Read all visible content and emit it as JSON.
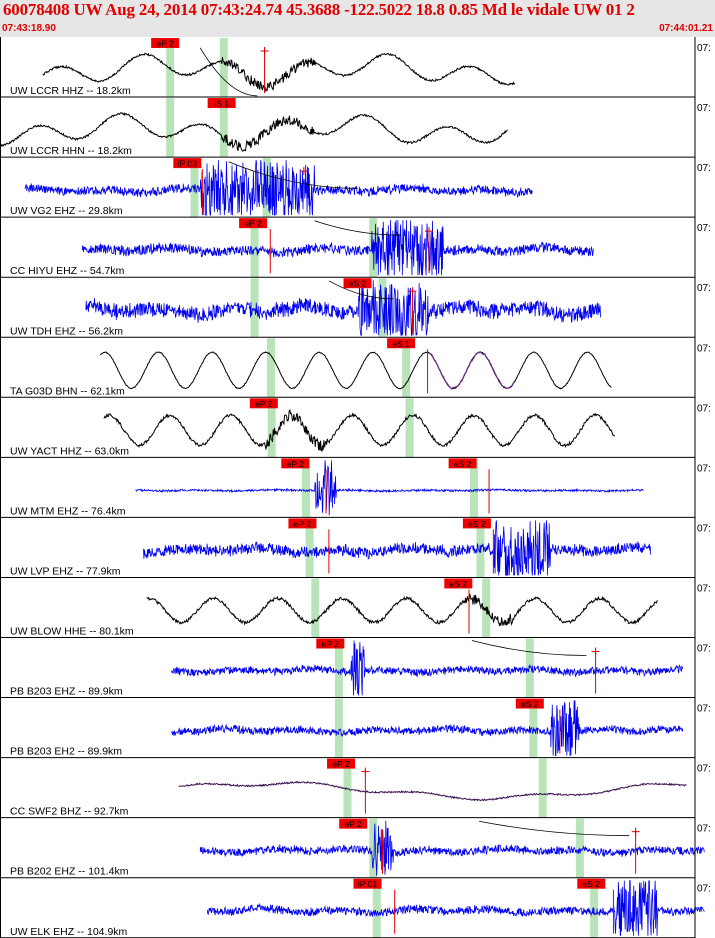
{
  "header": {
    "title": "60078408 UW Aug 24, 2014 07:43:24.74    45.3688 -122.5022 18.8 0.85 Md le vidale UW 01   2",
    "start_time": "07:43:18.90",
    "end_time": "07:44:01.21"
  },
  "edge_label": "07:",
  "traces": [
    {
      "label": "UW LCCR HHZ -- 18.2km",
      "color": "#000000",
      "style": "lowfreq",
      "t0": 0.06,
      "t1": 0.72,
      "amp": 0.55,
      "picks": [
        {
          "text": "eP 2",
          "x": 0.231
        }
      ],
      "shades": [
        0.238,
        0.313
      ],
      "redlines": [
        0.37
      ],
      "crosses": [
        0.37
      ],
      "burst": [
        0.31,
        0.44
      ],
      "curve": [
        0.28,
        0.18,
        0.36,
        0.98
      ]
    },
    {
      "label": "UW LCCR HHN -- 18.2km",
      "color": "#000000",
      "style": "lowfreq",
      "t0": 0.0,
      "t1": 0.71,
      "amp": 0.55,
      "picks": [
        {
          "text": "iS 1",
          "x": 0.31
        }
      ],
      "shades": [
        0.238,
        0.313
      ],
      "redlines": [],
      "crosses": [],
      "burst": [
        0.31,
        0.44
      ]
    },
    {
      "label": "UW VG2 EHZ -- 29.8km",
      "color": "#0000ee",
      "style": "hf",
      "t0": 0.035,
      "t1": 0.745,
      "amp": 0.18,
      "picks": [
        {
          "text": "iP 03",
          "x": 0.262
        }
      ],
      "shades": [
        0.272,
        0.373
      ],
      "redlines": [
        0.283
      ],
      "crosses": [
        0.425
      ],
      "burst": [
        0.28,
        0.44
      ],
      "curve": [
        0.32,
        0.08,
        0.5,
        0.52
      ]
    },
    {
      "label": "CC HIYU EHZ -- 54.7km",
      "color": "#0000ee",
      "style": "hf",
      "t0": 0.115,
      "t1": 0.83,
      "amp": 0.2,
      "picks": [
        {
          "text": "eP 2",
          "x": 0.354
        }
      ],
      "shades": [
        0.356,
        0.522
      ],
      "redlines": [
        0.378,
        0.6
      ],
      "crosses": [
        0.6
      ],
      "burst": [
        0.52,
        0.62
      ],
      "curve": [
        0.44,
        0.06,
        0.56,
        0.3
      ]
    },
    {
      "label": "UW TDH EHZ -- 56.2km",
      "color": "#0000ee",
      "style": "hf",
      "t0": 0.12,
      "t1": 0.84,
      "amp": 0.3,
      "picks": [
        {
          "text": "eS 2",
          "x": 0.5
        }
      ],
      "shades": [
        0.356,
        0.535
      ],
      "redlines": [
        0.577
      ],
      "crosses": [
        0.577
      ],
      "burst": [
        0.5,
        0.6
      ],
      "curve": [
        0.46,
        0.06,
        0.55,
        0.36
      ]
    },
    {
      "label": "TA G03D BHN -- 62.1km",
      "color": "#000000",
      "style": "sine",
      "t0": 0.14,
      "t1": 0.855,
      "amp": 0.6,
      "period": 0.075,
      "picks": [
        {
          "text": "eS 1",
          "x": 0.561
        }
      ],
      "shades": [
        0.379,
        0.568
      ],
      "redlines": [
        0.598
      ],
      "crosses": [],
      "burst": [],
      "purple": [
        0.6,
        0.72
      ]
    },
    {
      "label": "UW YACT HHZ -- 63.0km",
      "color": "#000000",
      "style": "sinenoisy",
      "t0": 0.145,
      "t1": 0.86,
      "amp": 0.5,
      "period": 0.085,
      "picks": [
        {
          "text": "eP 2",
          "x": 0.369
        }
      ],
      "shades": [
        0.38,
        0.573
      ],
      "redlines": [],
      "crosses": [],
      "burst": [
        0.37,
        0.46
      ]
    },
    {
      "label": "UW MTM EHZ -- 76.4km",
      "color": "#0000ee",
      "style": "hf",
      "t0": 0.19,
      "t1": 0.9,
      "amp": 0.04,
      "picks": [
        {
          "text": "eP 2",
          "x": 0.413
        },
        {
          "text": "eS 2",
          "x": 0.647
        }
      ],
      "shades": [
        0.428,
        0.663
      ],
      "redlines": [
        0.456,
        0.684
      ],
      "crosses": [],
      "burst": [
        0.44,
        0.47
      ]
    },
    {
      "label": "UW LVP EHZ -- 77.9km",
      "color": "#0000ee",
      "style": "hf",
      "t0": 0.2,
      "t1": 0.91,
      "amp": 0.22,
      "picks": [
        {
          "text": "eP 2",
          "x": 0.423
        },
        {
          "text": "eS 2",
          "x": 0.667
        }
      ],
      "shades": [
        0.433,
        0.672
      ],
      "redlines": [
        0.46,
        0.69
      ],
      "crosses": [],
      "burst": [
        0.69,
        0.77
      ]
    },
    {
      "label": "UW BLOW HHE -- 80.1km",
      "color": "#000000",
      "style": "sinenoisy",
      "t0": 0.205,
      "t1": 0.92,
      "amp": 0.4,
      "period": 0.09,
      "picks": [
        {
          "text": "eS 2",
          "x": 0.641
        }
      ],
      "shades": [
        0.441,
        0.68
      ],
      "redlines": [
        0.656
      ],
      "crosses": [],
      "burst": [
        0.65,
        0.72
      ]
    },
    {
      "label": "PB B203 EHZ -- 89.9km",
      "color": "#0000ee",
      "style": "hf",
      "t0": 0.24,
      "t1": 0.955,
      "amp": 0.15,
      "picks": [
        {
          "text": "eP 2",
          "x": 0.462
        }
      ],
      "shades": [
        0.474,
        0.741
      ],
      "redlines": [
        0.5,
        0.833
      ],
      "crosses": [
        0.833
      ],
      "burst": [
        0.49,
        0.51
      ],
      "curve": [
        0.66,
        0.05,
        0.82,
        0.3
      ]
    },
    {
      "label": "PB B203 EH2 -- 89.9km",
      "color": "#0000ee",
      "style": "hf",
      "t0": 0.24,
      "t1": 0.955,
      "amp": 0.15,
      "picks": [
        {
          "text": "eS 2",
          "x": 0.741
        }
      ],
      "shades": [
        0.474,
        0.746
      ],
      "redlines": [
        0.783
      ],
      "crosses": [],
      "burst": [
        0.77,
        0.81
      ]
    },
    {
      "label": "CC SWF2 BHZ -- 92.7km",
      "color": "#3b1050",
      "style": "swf",
      "t0": 0.25,
      "t1": 0.96,
      "amp": 0.3,
      "picks": [
        {
          "text": "eP 2",
          "x": 0.477
        }
      ],
      "shades": [
        0.486,
        0.759
      ],
      "redlines": [
        0.511
      ],
      "crosses": [
        0.511
      ],
      "burst": []
    },
    {
      "label": "PB B202 EHZ -- 101.4km",
      "color": "#0000ee",
      "style": "hf",
      "t0": 0.28,
      "t1": 0.99,
      "amp": 0.16,
      "picks": [
        {
          "text": "eP 2",
          "x": 0.494
        }
      ],
      "shades": [
        0.522,
        0.811
      ],
      "redlines": [
        0.535,
        0.889
      ],
      "crosses": [
        0.889
      ],
      "burst": [
        0.52,
        0.55
      ],
      "curve": [
        0.67,
        0.06,
        0.88,
        0.3
      ]
    },
    {
      "label": "UW ELK EHZ -- 104.9km",
      "color": "#0000ee",
      "style": "hf",
      "t0": 0.29,
      "t1": 1.0,
      "amp": 0.16,
      "picks": [
        {
          "text": "iP 01",
          "x": 0.514
        },
        {
          "text": "eS 2",
          "x": 0.827
        }
      ],
      "shades": [
        0.527,
        0.831
      ],
      "redlines": [
        0.552,
        0.858
      ],
      "crosses": [],
      "burst": [
        0.86,
        0.92
      ]
    }
  ]
}
